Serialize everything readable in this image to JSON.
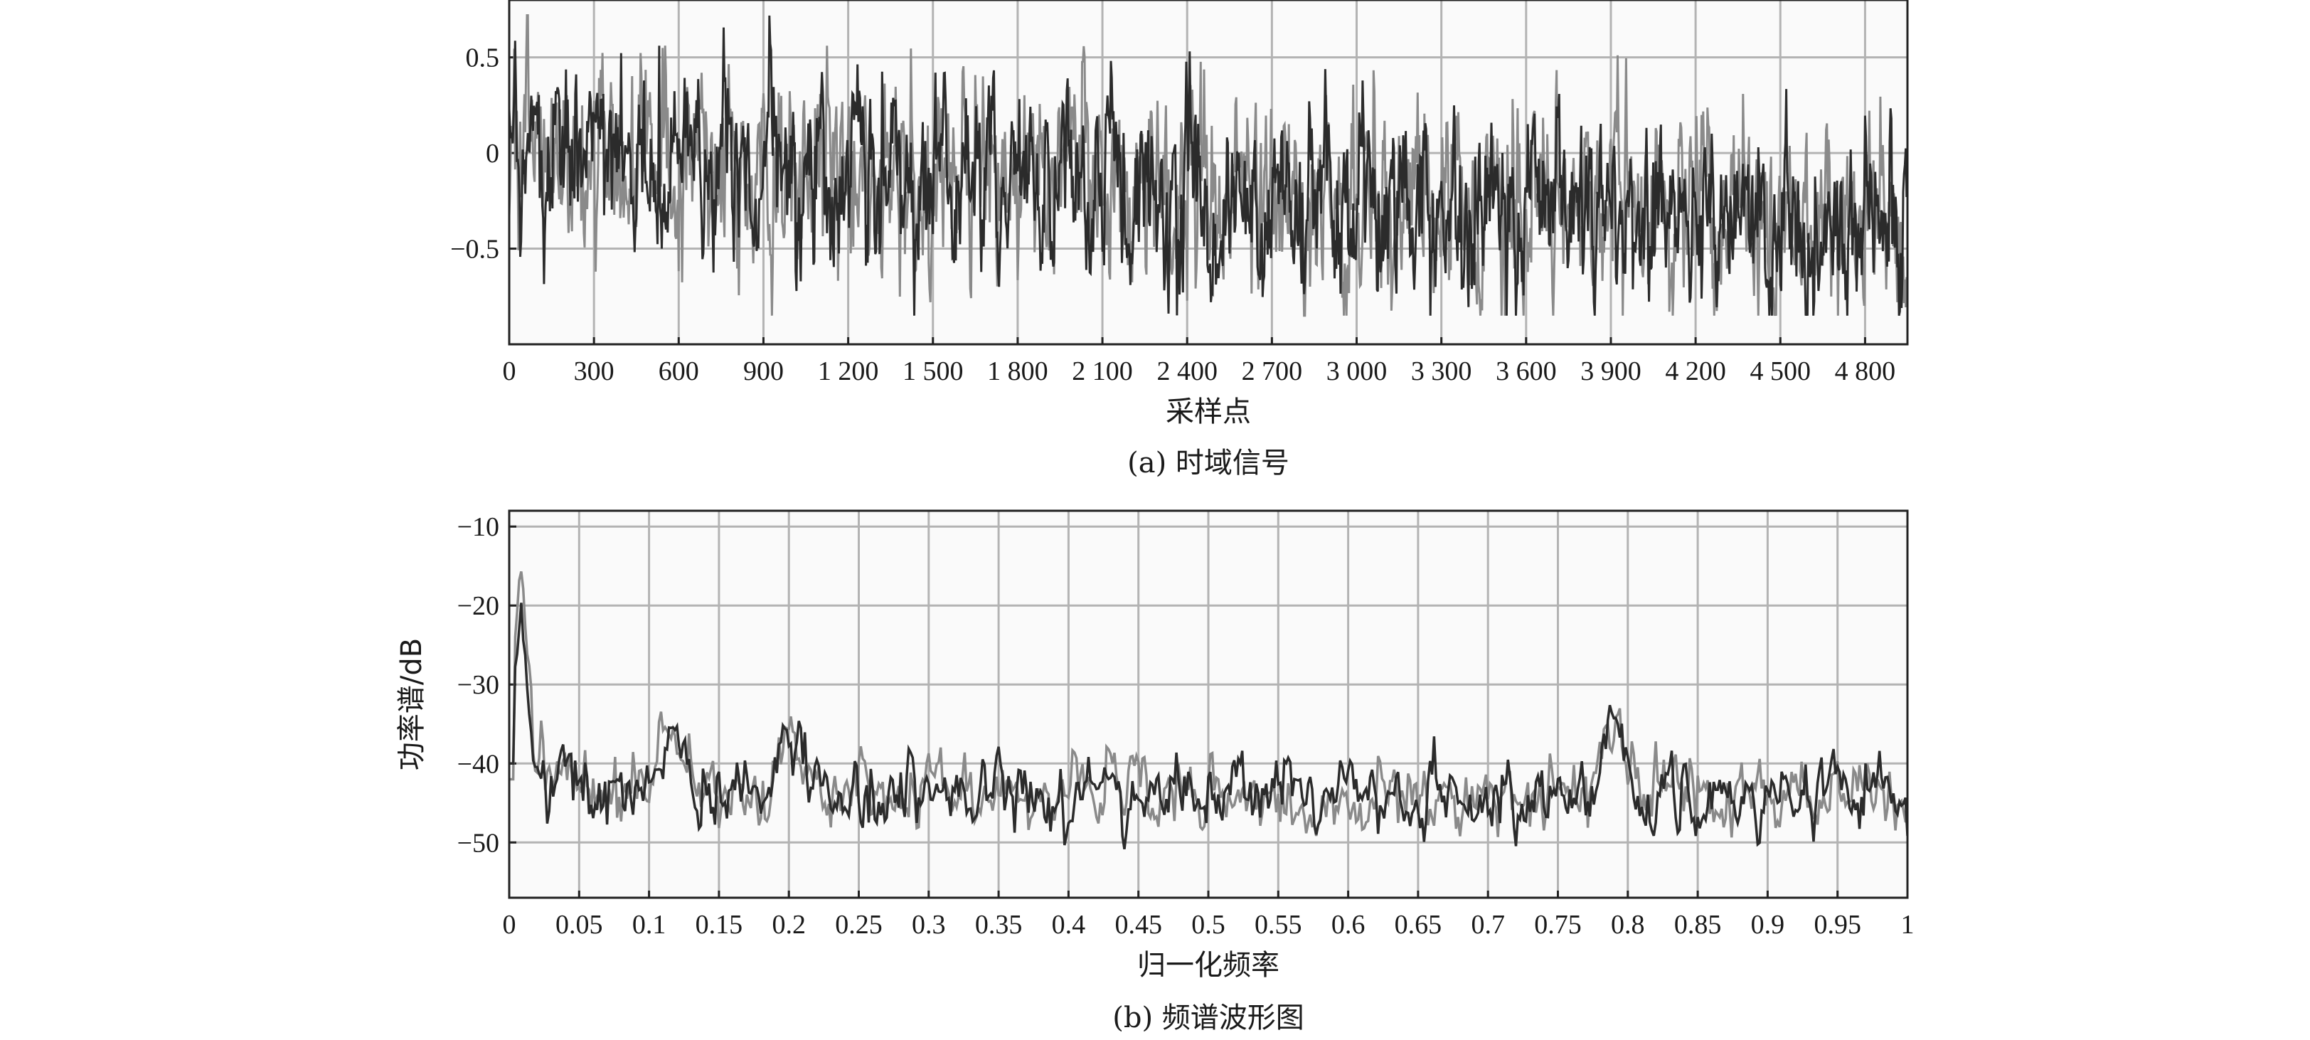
{
  "chart_data": [
    {
      "type": "line",
      "caption": "(a) 时域信号",
      "xlabel": "采样点",
      "ylabel": "",
      "xlim": [
        0,
        4950
      ],
      "ylim": [
        -1.0,
        0.8
      ],
      "x_ticks": [
        0,
        300,
        600,
        900,
        1200,
        1500,
        1800,
        2100,
        2400,
        2700,
        3000,
        3300,
        3600,
        3900,
        4200,
        4500,
        4800
      ],
      "x_tick_labels": [
        "0",
        "300",
        "600",
        "900",
        "1 200",
        "1 500",
        "1 800",
        "2 100",
        "2 400",
        "2 700",
        "3 000",
        "3 300",
        "3 600",
        "3 900",
        "4 200",
        "4 500",
        "4 800"
      ],
      "y_ticks": [
        0.5,
        0,
        -0.5
      ],
      "y_tick_labels": [
        "0.5",
        "0",
        "−0.5"
      ],
      "grid": true,
      "series_colors": [
        "#8a8a8a",
        "#2b2b2b"
      ],
      "signal": {
        "samples": 4950,
        "trend_start": 0.0,
        "trend_end": -0.38,
        "amplitude": 0.22,
        "range": [
          -0.85,
          0.72
        ]
      }
    },
    {
      "type": "line",
      "caption": "(b) 频谱波形图",
      "xlabel": "归一化频率",
      "ylabel": "功率谱/dB",
      "xlim": [
        0,
        1
      ],
      "ylim": [
        -57,
        -8
      ],
      "x_ticks": [
        0,
        0.05,
        0.1,
        0.15,
        0.2,
        0.25,
        0.3,
        0.35,
        0.4,
        0.45,
        0.5,
        0.55,
        0.6,
        0.65,
        0.7,
        0.75,
        0.8,
        0.85,
        0.9,
        0.95,
        1
      ],
      "x_tick_labels": [
        "0",
        "0.05",
        "0.1",
        "0.15",
        "0.2",
        "0.25",
        "0.3",
        "0.35",
        "0.4",
        "0.45",
        "0.5",
        "0.55",
        "0.6",
        "0.65",
        "0.7",
        "0.75",
        "0.8",
        "0.85",
        "0.9",
        "0.95",
        "1"
      ],
      "y_ticks": [
        -10,
        -20,
        -30,
        -40,
        -50
      ],
      "y_tick_labels": [
        "−10",
        "−20",
        "−30",
        "−40",
        "−50"
      ],
      "grid": true,
      "series_colors": [
        "#8a8a8a",
        "#2b2b2b"
      ],
      "baseline_db": -44,
      "peaks": [
        {
          "x": 0.008,
          "y": -20
        },
        {
          "x": 0.115,
          "y": -35
        },
        {
          "x": 0.2,
          "y": -36
        },
        {
          "x": 0.79,
          "y": -33
        }
      ]
    }
  ]
}
